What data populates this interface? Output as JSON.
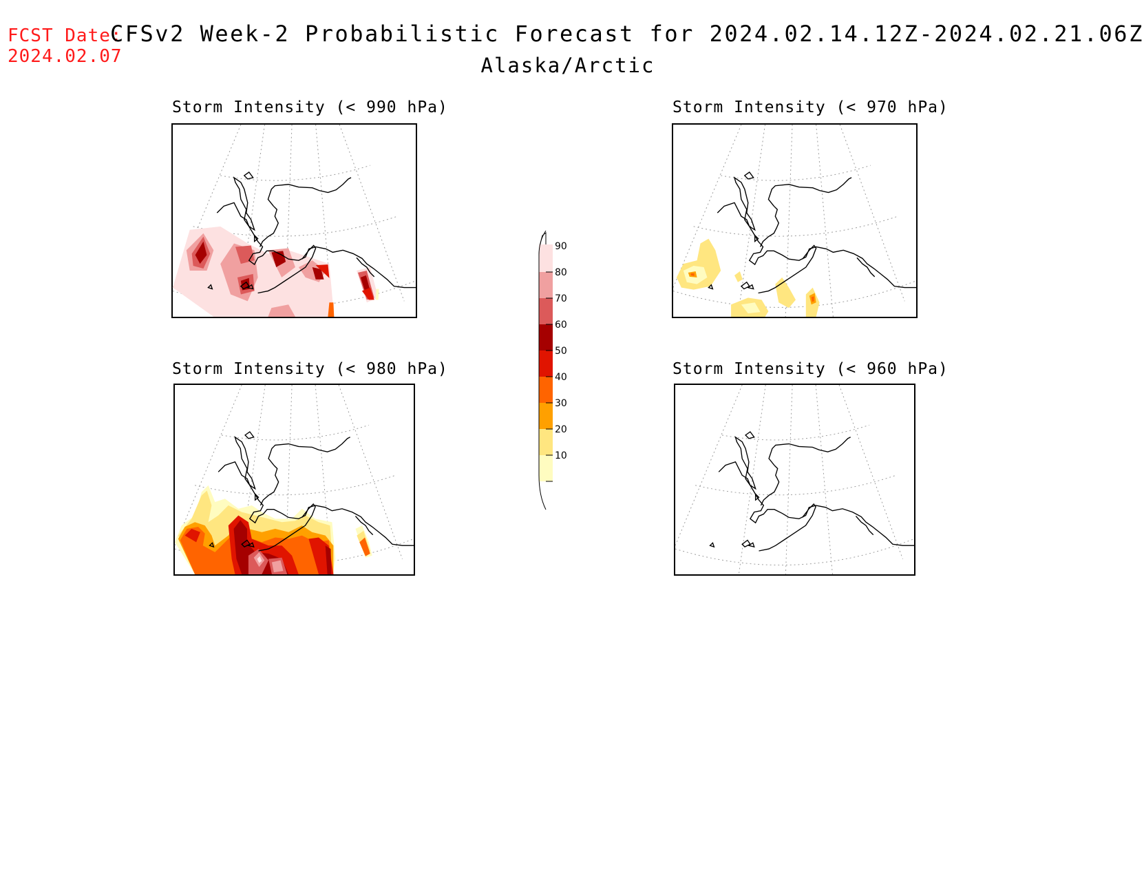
{
  "header": {
    "fcst_label": "FCST Date:",
    "fcst_date": "2024.02.07",
    "title": "CFSv2 Week-2 Probabilistic Forecast for 2024.02.14.12Z-2024.02.21.06Z",
    "subtitle": "Alaska/Arctic"
  },
  "panels": [
    {
      "id": "p990",
      "title": "Storm Intensity (< 990 hPa)"
    },
    {
      "id": "p970",
      "title": "Storm Intensity (< 970 hPa)"
    },
    {
      "id": "p980",
      "title": "Storm Intensity (< 980 hPa)"
    },
    {
      "id": "p960",
      "title": "Storm Intensity (< 960 hPa)"
    }
  ],
  "colorbar": {
    "labels": [
      "90",
      "80",
      "70",
      "60",
      "50",
      "40",
      "30",
      "20",
      "10"
    ],
    "colors": {
      "c10": "#fffcc0",
      "c20": "#ffe680",
      "c30": "#ffa000",
      "c40": "#ff6400",
      "c50": "#e01400",
      "c60": "#a50000",
      "c70": "#dc5a5a",
      "c80": "#f0a0a0",
      "c90": "#fde1e1"
    }
  }
}
